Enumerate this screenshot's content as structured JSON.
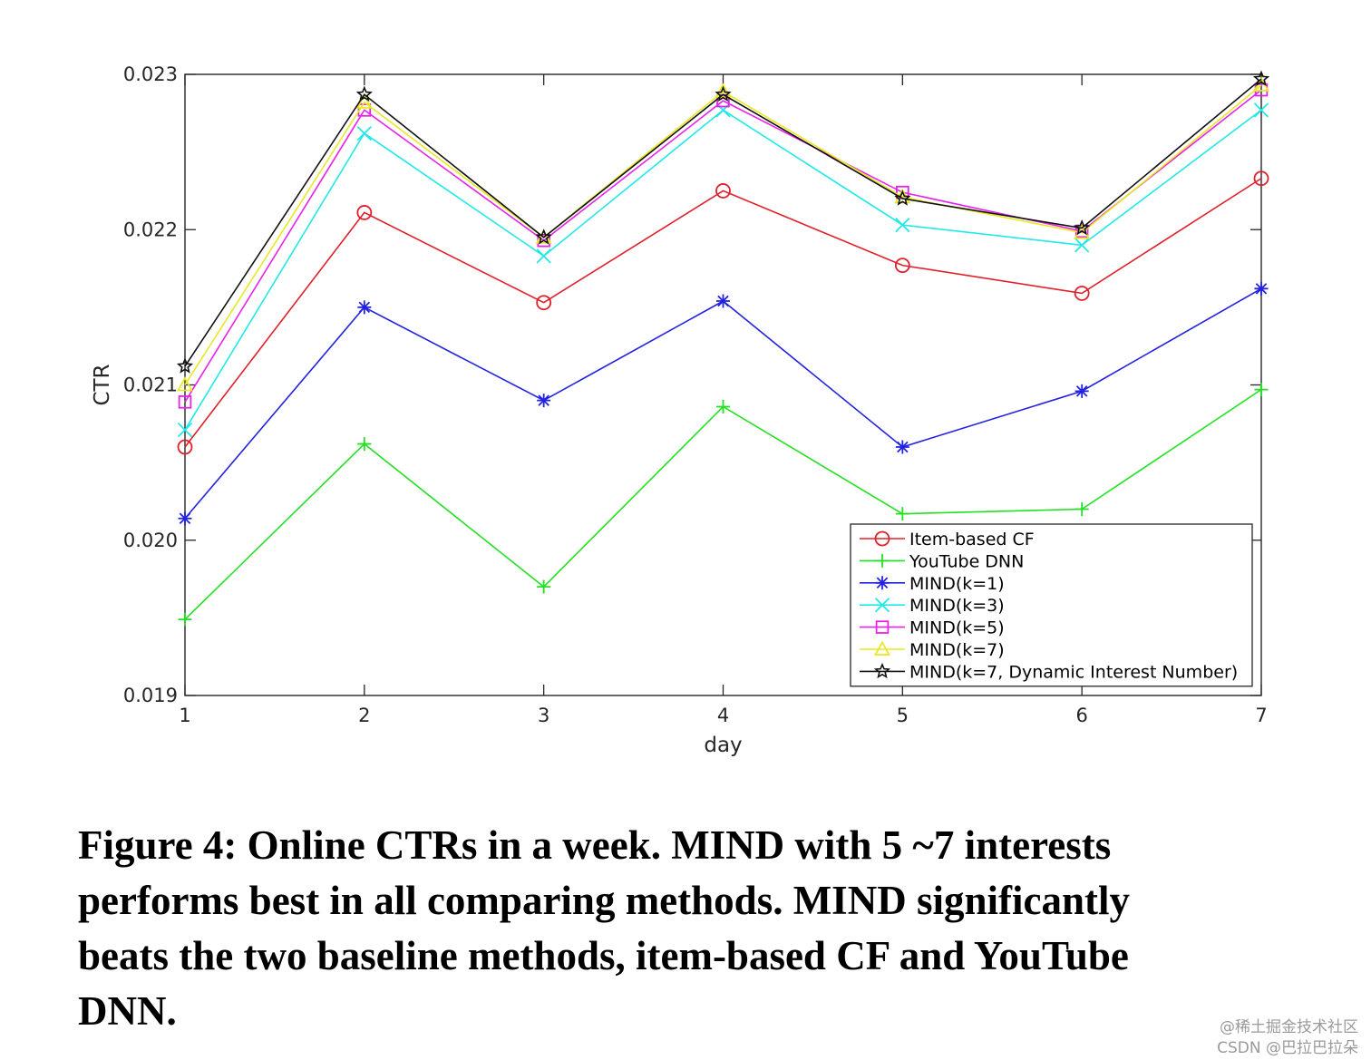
{
  "chart_data": {
    "type": "line",
    "xlabel": "day",
    "ylabel": "CTR",
    "x": [
      1,
      2,
      3,
      4,
      5,
      6,
      7
    ],
    "xlim": [
      1,
      7
    ],
    "ylim": [
      0.019,
      0.023
    ],
    "yticks": [
      0.019,
      0.02,
      0.021,
      0.022,
      0.023
    ],
    "ytick_labels": [
      "0.019",
      "0.020",
      "0.021",
      "0.022",
      "0.023"
    ],
    "xtick_labels": [
      "1",
      "2",
      "3",
      "4",
      "5",
      "6",
      "7"
    ],
    "grid": false,
    "legend_position": "bottom-right",
    "series": [
      {
        "name": "Item-based CF",
        "color": "#e0202a",
        "marker": "circle",
        "values": [
          0.0206,
          0.02211,
          0.02153,
          0.02225,
          0.02177,
          0.02159,
          0.02233
        ]
      },
      {
        "name": "YouTube DNN",
        "color": "#22e022",
        "marker": "plus",
        "values": [
          0.01949,
          0.02062,
          0.0197,
          0.02086,
          0.02017,
          0.0202,
          0.02097
        ]
      },
      {
        "name": "MIND(k=1)",
        "color": "#2222e0",
        "marker": "asterisk",
        "values": [
          0.02014,
          0.0215,
          0.0209,
          0.02154,
          0.0206,
          0.02096,
          0.02162
        ]
      },
      {
        "name": "MIND(k=3)",
        "color": "#22e8e8",
        "marker": "x",
        "values": [
          0.02071,
          0.02262,
          0.02183,
          0.02277,
          0.02203,
          0.0219,
          0.02277
        ]
      },
      {
        "name": "MIND(k=5)",
        "color": "#e822e8",
        "marker": "square",
        "values": [
          0.02089,
          0.02277,
          0.02193,
          0.02283,
          0.02224,
          0.02199,
          0.0229
        ]
      },
      {
        "name": "MIND(k=7)",
        "color": "#e8e822",
        "marker": "triangle",
        "values": [
          0.021,
          0.02282,
          0.02195,
          0.02289,
          0.02221,
          0.02198,
          0.02293
        ]
      },
      {
        "name": "MIND(k=7, Dynamic Interest Number)",
        "color": "#111111",
        "marker": "star",
        "values": [
          0.02112,
          0.02287,
          0.02195,
          0.02287,
          0.0222,
          0.02201,
          0.02297
        ]
      }
    ]
  },
  "caption": {
    "line1": "Figure 4: Online CTRs in a week. MIND with 5 ~7 interests",
    "line2": "performs best in all comparing methods. MIND significantly",
    "line3": "beats the two baseline methods, item-based CF and YouTube",
    "line4": "DNN."
  },
  "watermark": {
    "line1": "@稀土掘金技术社区",
    "line2": "CSDN @巴拉巴拉朵"
  }
}
